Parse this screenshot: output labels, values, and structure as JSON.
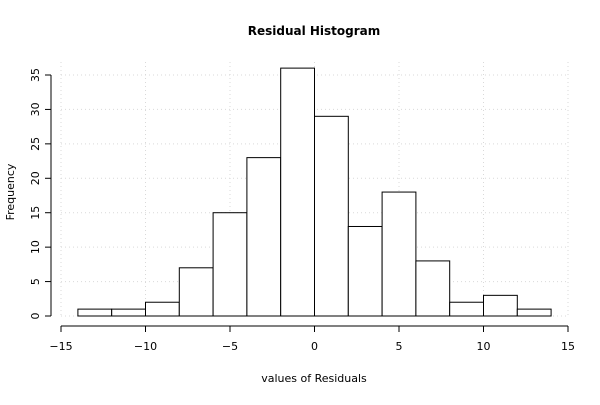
{
  "chart_data": {
    "type": "bar",
    "title": "Residual Histogram",
    "xlabel": "values of Residuals",
    "ylabel": "Frequency",
    "bin_edges": [
      -14,
      -12,
      -10,
      -8,
      -6,
      -4,
      -2,
      0,
      2,
      4,
      6,
      8,
      10,
      12,
      14
    ],
    "counts": [
      1,
      1,
      2,
      7,
      15,
      23,
      36,
      29,
      13,
      18,
      8,
      2,
      3,
      1
    ],
    "xlim": [
      -15,
      15
    ],
    "ylim": [
      0,
      36
    ],
    "x_ticks": [
      -15,
      -10,
      -5,
      0,
      5,
      10,
      15
    ],
    "x_tick_labels": [
      "−15",
      "−10",
      "−5",
      "0",
      "5",
      "10",
      "15"
    ],
    "y_ticks": [
      0,
      5,
      10,
      15,
      20,
      25,
      30,
      35
    ],
    "y_tick_labels": [
      "0",
      "5",
      "10",
      "15",
      "20",
      "25",
      "30",
      "35"
    ],
    "grid": true,
    "grid_style": "dotted",
    "vertical_reference_line_at": 0,
    "colors": {
      "bar_fill": "#ffffff",
      "bar_stroke": "#000000",
      "grid": "#d9d9d9"
    }
  }
}
